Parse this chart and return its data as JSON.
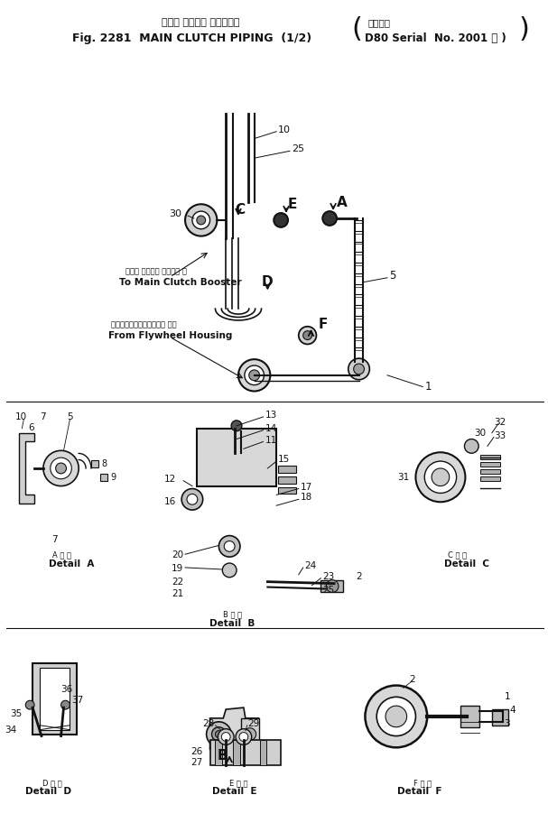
{
  "title_jp": "メイン クラッチ パイピング",
  "title_en": "Fig. 2281  MAIN CLUTCH PIPING  (1/2)",
  "serial_jp": "適用号機",
  "serial_en": "D80 Serial  No. 2001 ～ )",
  "bg_color": "#ffffff",
  "line_color": "#111111",
  "fig_width": 6.07,
  "fig_height": 9.22,
  "dpi": 100
}
